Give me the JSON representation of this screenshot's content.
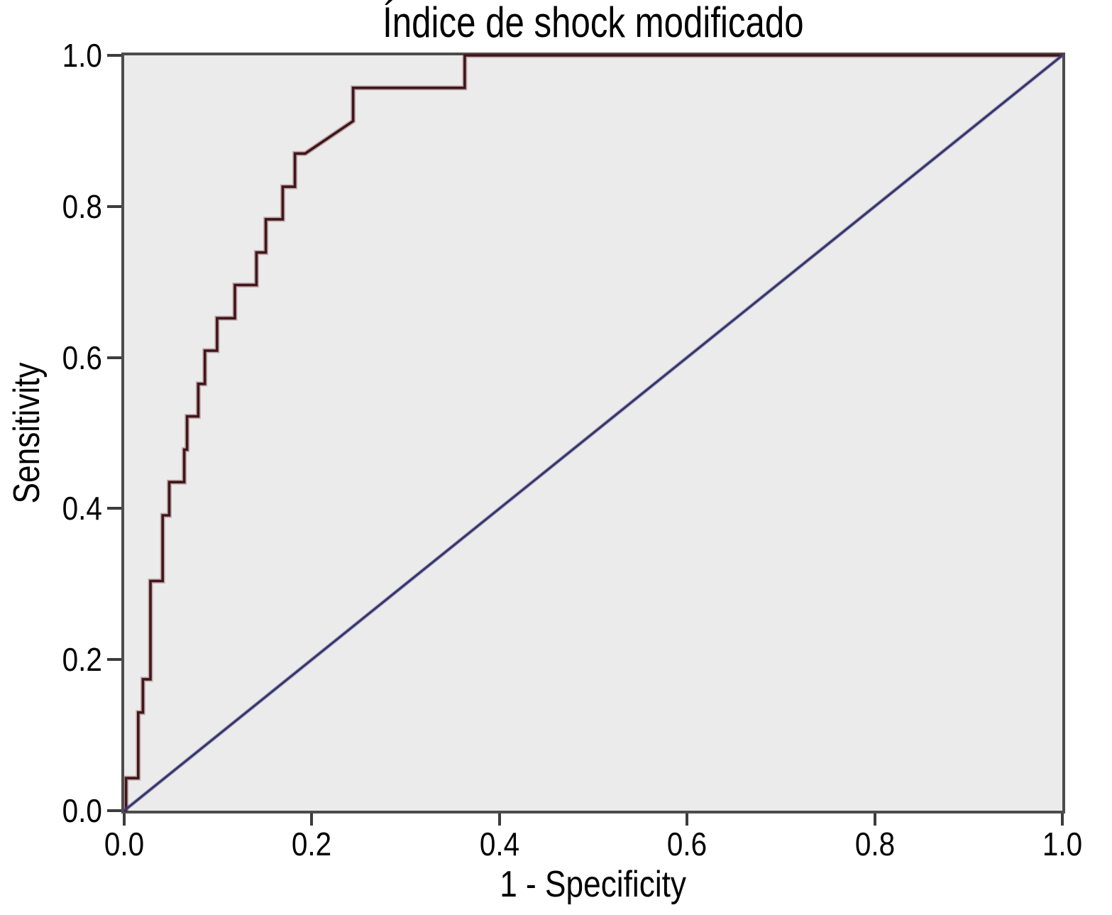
{
  "title": "Índice de shock modificado",
  "axes": {
    "x_label": "1 - Specificity",
    "y_label": "Sensitivity",
    "x_ticks": [
      "0.0",
      "0.2",
      "0.4",
      "0.6",
      "0.8",
      "1.0"
    ],
    "y_ticks": [
      "1.0",
      "0.8",
      "0.6",
      "0.4",
      "0.2",
      "0.0"
    ]
  },
  "colors": {
    "roc_curve": "#411519",
    "roc_halo": "rgba(125,75,80,0.40)",
    "reference_line": "#37356e",
    "reference_halo": "rgba(80,78,130,0.35)",
    "plot_background": "#ebebeb",
    "frame": "#4c4c4c",
    "tick": "#3c3c3c",
    "text": "#000000"
  },
  "chart_data": {
    "type": "line",
    "title": "Índice de shock modificado",
    "xlabel": "1 - Specificity",
    "ylabel": "Sensitivity",
    "xlim": [
      0,
      1
    ],
    "ylim": [
      0,
      1
    ],
    "grid": false,
    "legend": "none",
    "x_tick_values": [
      0.0,
      0.2,
      0.4,
      0.6,
      0.8,
      1.0
    ],
    "y_tick_values": [
      0.0,
      0.2,
      0.4,
      0.6,
      0.8,
      1.0
    ],
    "series": [
      {
        "name": "ROC curve - Índice de shock modificado (step curve)",
        "color": "#411519",
        "points": [
          [
            0.0,
            0.0
          ],
          [
            0.002,
            0.0
          ],
          [
            0.002,
            0.043
          ],
          [
            0.015,
            0.043
          ],
          [
            0.015,
            0.13
          ],
          [
            0.02,
            0.13
          ],
          [
            0.02,
            0.174
          ],
          [
            0.028,
            0.174
          ],
          [
            0.028,
            0.304
          ],
          [
            0.041,
            0.304
          ],
          [
            0.041,
            0.391
          ],
          [
            0.048,
            0.391
          ],
          [
            0.048,
            0.435
          ],
          [
            0.064,
            0.435
          ],
          [
            0.064,
            0.478
          ],
          [
            0.067,
            0.478
          ],
          [
            0.067,
            0.522
          ],
          [
            0.079,
            0.522
          ],
          [
            0.079,
            0.565
          ],
          [
            0.086,
            0.565
          ],
          [
            0.086,
            0.609
          ],
          [
            0.099,
            0.609
          ],
          [
            0.099,
            0.652
          ],
          [
            0.118,
            0.652
          ],
          [
            0.118,
            0.696
          ],
          [
            0.141,
            0.696
          ],
          [
            0.141,
            0.739
          ],
          [
            0.151,
            0.739
          ],
          [
            0.151,
            0.783
          ],
          [
            0.169,
            0.783
          ],
          [
            0.169,
            0.826
          ],
          [
            0.182,
            0.826
          ],
          [
            0.182,
            0.87
          ],
          [
            0.193,
            0.87
          ],
          [
            0.244,
            0.913
          ],
          [
            0.244,
            0.957
          ],
          [
            0.363,
            0.957
          ],
          [
            0.363,
            1.0
          ],
          [
            1.0,
            1.0
          ]
        ]
      },
      {
        "name": "Reference diagonal line",
        "color": "#37356e",
        "points": [
          [
            0.0,
            0.0
          ],
          [
            1.0,
            1.0
          ]
        ]
      }
    ]
  }
}
